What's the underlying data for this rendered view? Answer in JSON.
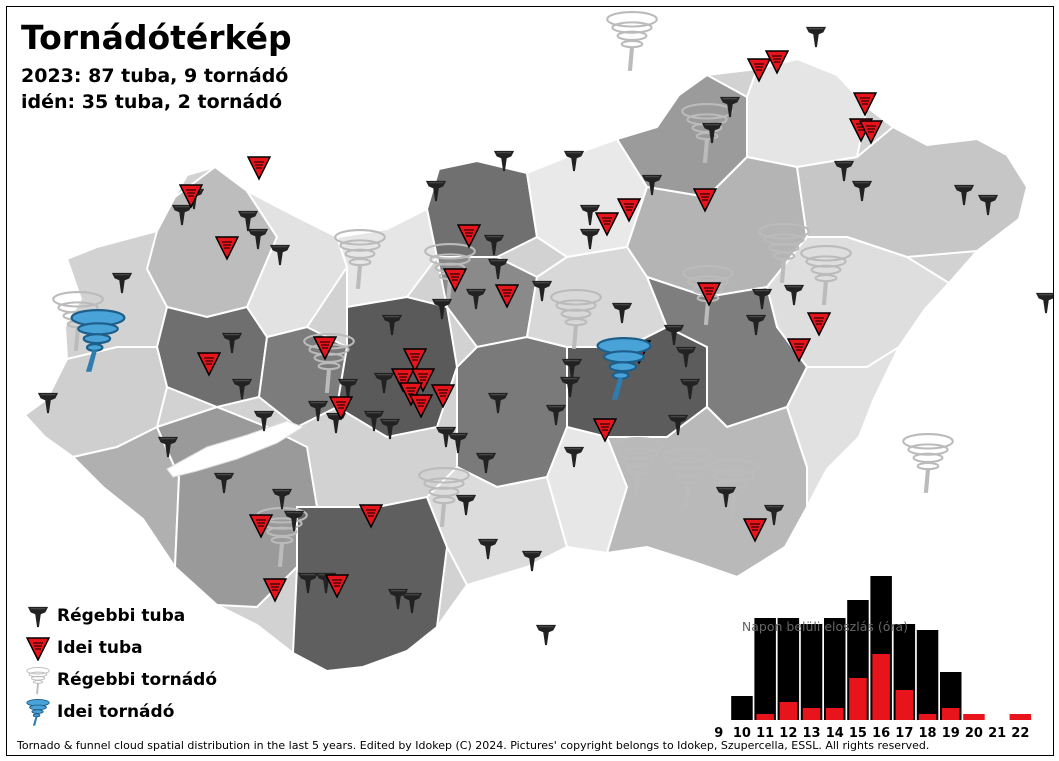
{
  "header": {
    "title": "Tornádótérkép",
    "line1": "2023: 87 tuba, 9 tornádó",
    "line2": "idén: 35 tuba, 2 tornádó"
  },
  "legend": {
    "items": [
      {
        "label": "Régebbi tuba",
        "icon": "funnel-dark-icon"
      },
      {
        "label": "Idei tuba",
        "icon": "funnel-red-triangle-icon"
      },
      {
        "label": "Régebbi tornádó",
        "icon": "tornado-grey-icon"
      },
      {
        "label": "Idei tornádó",
        "icon": "tornado-blue-icon"
      }
    ]
  },
  "colors": {
    "old_funnel": "#222222",
    "new_funnel": "#e8141b",
    "old_tornado": "#c8c8c8",
    "new_tornado": "#3a8fc4",
    "region_shades": [
      "#e4e4e4",
      "#cfcfcf",
      "#b2b2b2",
      "#8f8f8f",
      "#6a6a6a"
    ]
  },
  "chart_data": {
    "type": "bar",
    "title": "Napon belüli eloszlás (óra)",
    "categories": [
      "9",
      "10",
      "11",
      "12",
      "13",
      "14",
      "15",
      "16",
      "17",
      "18",
      "19",
      "20",
      "21",
      "22"
    ],
    "series": [
      {
        "values": [
          0,
          4,
          17,
          17,
          16,
          17,
          20,
          24,
          16,
          15,
          8,
          0,
          0,
          0
        ]
      },
      {
        "values": [
          0,
          0,
          1,
          3,
          2,
          2,
          7,
          11,
          5,
          1,
          2,
          1,
          0,
          1
        ]
      }
    ]
  },
  "footer": "Tornado & funnel cloud spatial distribution in the last 5 years. Edited by Idokep (C) 2024. Pictures' copyright belongs to Idokep, Szupercella, ESSL. All rights reserved."
}
